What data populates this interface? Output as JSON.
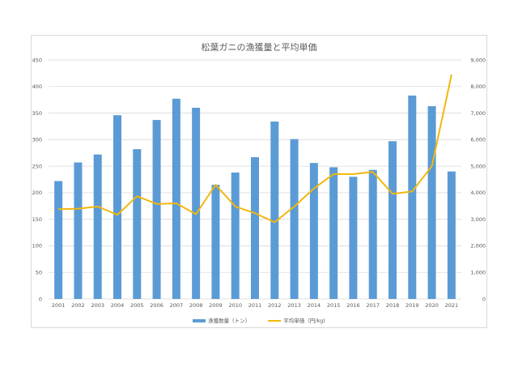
{
  "chart_data": {
    "type": "bar",
    "title": "松葉ガニの漁獲量と平均単価",
    "categories": [
      "2001",
      "2002",
      "2003",
      "2004",
      "2005",
      "2006",
      "2007",
      "2008",
      "2009",
      "2010",
      "2011",
      "2012",
      "2013",
      "2014",
      "2015",
      "2016",
      "2017",
      "2018",
      "2019",
      "2020",
      "2021"
    ],
    "series": [
      {
        "name": "漁獲数量（トン）",
        "type": "bar",
        "axis": "left",
        "color": "#5b9bd5",
        "values": [
          222,
          257,
          272,
          346,
          282,
          337,
          377,
          360,
          215,
          238,
          267,
          334,
          301,
          256,
          248,
          230,
          243,
          297,
          383,
          363,
          240
        ]
      },
      {
        "name": "平均単価（円/kg)",
        "type": "line",
        "axis": "right",
        "color": "#f2b70d",
        "values": [
          3380,
          3400,
          3480,
          3170,
          3870,
          3580,
          3600,
          3190,
          4300,
          3480,
          3230,
          2890,
          3480,
          4160,
          4700,
          4700,
          4780,
          3960,
          4050,
          5000,
          8450
        ]
      }
    ],
    "yleft": {
      "lim": [
        0,
        450
      ],
      "ticks": [
        "0",
        "50",
        "100",
        "150",
        "200",
        "250",
        "300",
        "350",
        "400",
        "450"
      ]
    },
    "yright": {
      "lim": [
        0,
        9000
      ],
      "ticks": [
        "0",
        "1,000",
        "2,000",
        "3,000",
        "4,000",
        "5,000",
        "6,000",
        "7,000",
        "8,000",
        "9,000"
      ]
    },
    "grid": true,
    "legend_position": "bottom"
  }
}
